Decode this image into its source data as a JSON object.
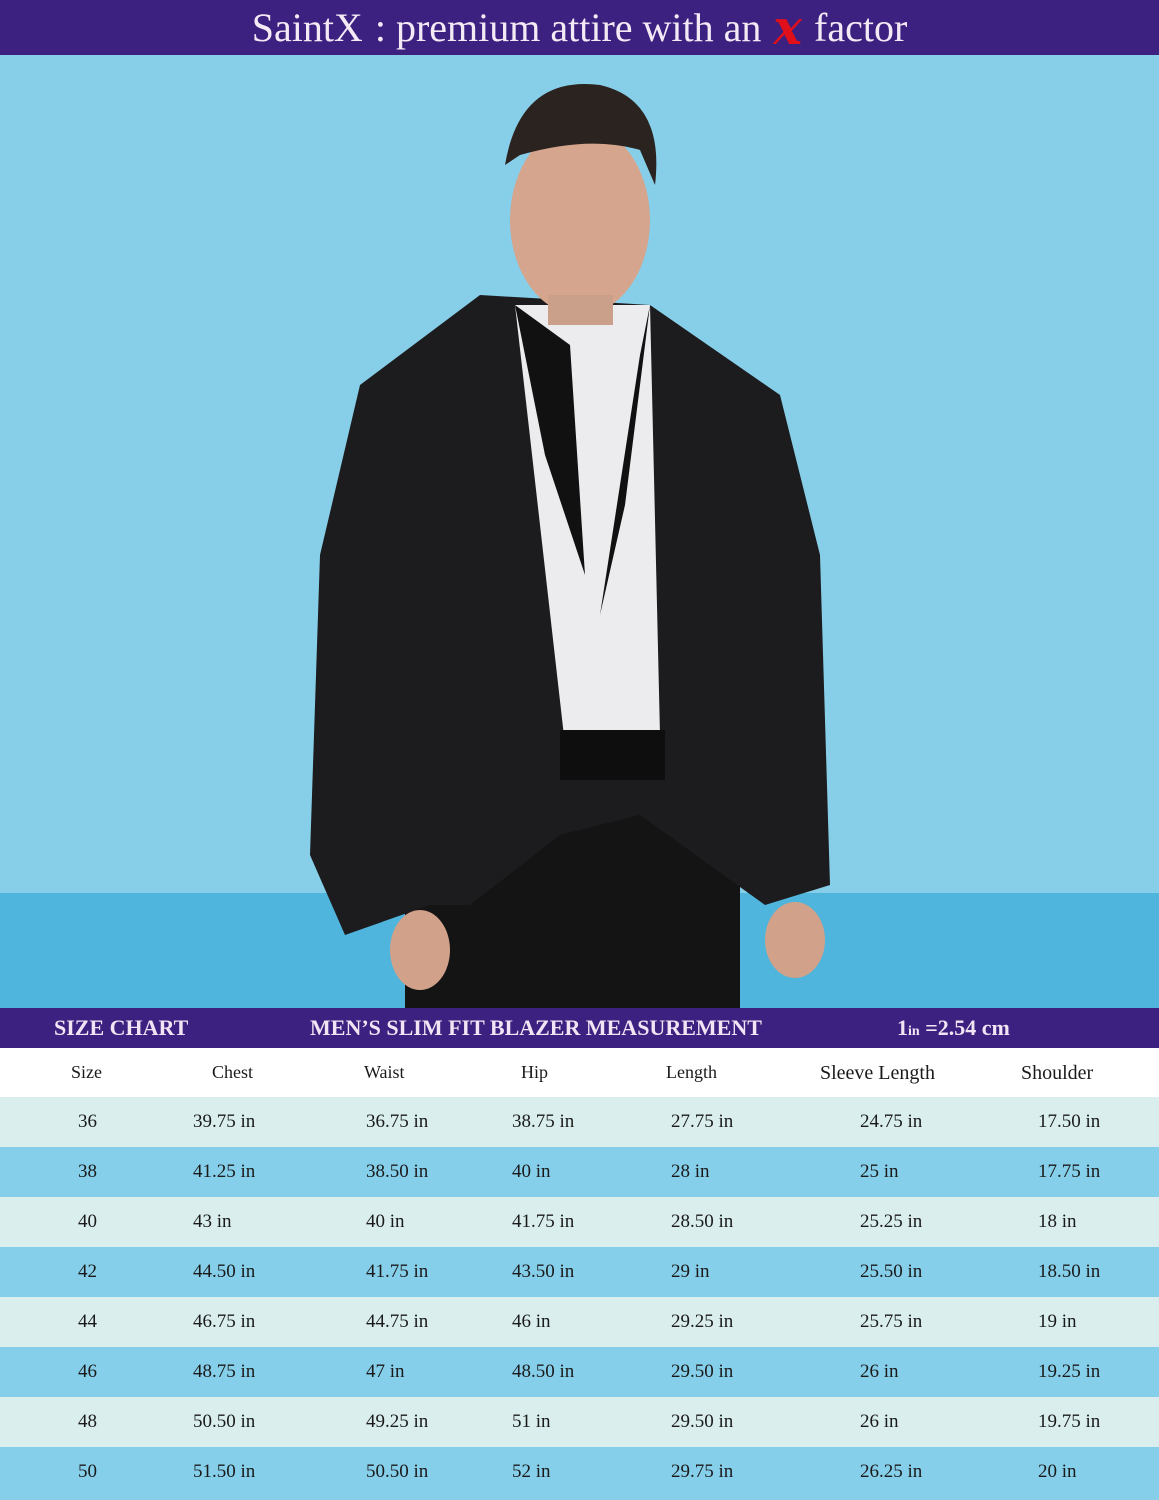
{
  "banner": {
    "brand": "SaintX",
    "tagline": ": premium attire with an",
    "x_mark": "x",
    "suffix": "factor"
  },
  "colors": {
    "banner": "#3d2180",
    "background": "#87cfe8",
    "floor": "#4fb5dc",
    "row_light": "#daeeee",
    "row_blue": "#86cfea",
    "x_mark": "#e0101a"
  },
  "chart": {
    "title_left": "SIZE CHART",
    "title_center": "MEN’S SLIM FIT BLAZER MEASUREMENT",
    "conversion_num": "1",
    "conversion_unit": "in",
    "conversion_rest": "=2.54 cm"
  },
  "table": {
    "headers": [
      "Size",
      "Chest",
      "Waist",
      "Hip",
      "Length",
      "Sleeve Length",
      "Shoulder"
    ],
    "rows": [
      [
        "36",
        "39.75 in",
        "36.75 in",
        "38.75 in",
        "27.75 in",
        "24.75 in",
        "17.50 in"
      ],
      [
        "38",
        "41.25 in",
        "38.50 in",
        "40 in",
        "28 in",
        "25 in",
        "17.75 in"
      ],
      [
        "40",
        "43 in",
        "40 in",
        "41.75 in",
        "28.50 in",
        "25.25 in",
        "18 in"
      ],
      [
        "42",
        "44.50 in",
        "41.75 in",
        "43.50 in",
        "29 in",
        "25.50 in",
        "18.50 in"
      ],
      [
        "44",
        "46.75 in",
        "44.75 in",
        "46 in",
        "29.25 in",
        "25.75 in",
        "19 in"
      ],
      [
        "46",
        "48.75 in",
        "47 in",
        "48.50 in",
        "29.50 in",
        "26 in",
        "19.25 in"
      ],
      [
        "48",
        "50.50 in",
        "49.25 in",
        "51 in",
        "29.50 in",
        "26 in",
        "19.75 in"
      ],
      [
        "50",
        "51.50 in",
        "50.50 in",
        "52 in",
        "29.75 in",
        "26.25 in",
        "20 in"
      ]
    ]
  }
}
